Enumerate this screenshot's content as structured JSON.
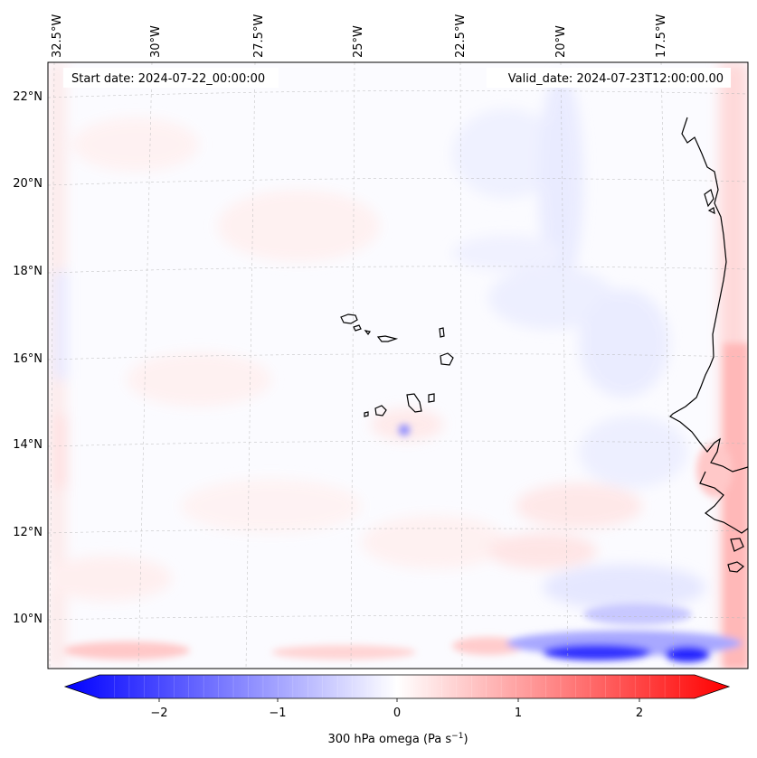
{
  "map": {
    "start_label": "Start date: 2024-07-22_00:00:00",
    "valid_label": "Valid_date: 2024-07-23T12:00:00.00",
    "lon_ticks": [
      "32.5°W",
      "30°W",
      "27.5°W",
      "25°W",
      "22.5°W",
      "20°W",
      "17.5°W"
    ],
    "lat_ticks": [
      "22°N",
      "20°N",
      "18°N",
      "16°N",
      "14°N",
      "12°N",
      "10°N"
    ]
  },
  "colorbar": {
    "ticks": [
      "−2",
      "−1",
      "0",
      "1",
      "2"
    ],
    "label_prefix": "300 hPa omega (Pa s",
    "label_sup": "−1",
    "label_suffix": ")",
    "range": [
      -2.6,
      2.6
    ],
    "neg_color": "#0000ff",
    "zero_color": "#ffffff",
    "pos_color": "#ff0000"
  }
}
